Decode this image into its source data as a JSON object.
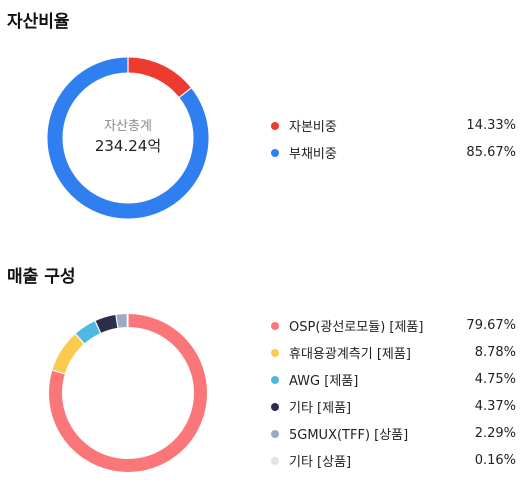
{
  "chart_data": [
    {
      "type": "pie",
      "title": "자산비율",
      "center": {
        "caption": "자산총계",
        "value": "234.24억"
      },
      "series": [
        {
          "label": "자본비중",
          "value": 14.33,
          "display": "14.33%",
          "color": "#ee3b30"
        },
        {
          "label": "부채비중",
          "value": 85.67,
          "display": "85.67%",
          "color": "#2f7ff0"
        }
      ]
    },
    {
      "type": "pie",
      "title": "매출 구성",
      "series": [
        {
          "label": "OSP(광선로모듈) [제품]",
          "value": 79.67,
          "display": "79.67%",
          "color": "#fb7678"
        },
        {
          "label": "휴대용광계측기 [제품]",
          "value": 8.78,
          "display": "8.78%",
          "color": "#fcca4e"
        },
        {
          "label": "AWG [제품]",
          "value": 4.75,
          "display": "4.75%",
          "color": "#4fb8e2"
        },
        {
          "label": "기타 [제품]",
          "value": 4.37,
          "display": "4.37%",
          "color": "#2b2d4c"
        },
        {
          "label": "5GMUX(TFF) [상품]",
          "value": 2.29,
          "display": "2.29%",
          "color": "#9aaac8"
        },
        {
          "label": "기타 [상품]",
          "value": 0.16,
          "display": "0.16%",
          "color": "#dfe3e8"
        }
      ]
    }
  ]
}
